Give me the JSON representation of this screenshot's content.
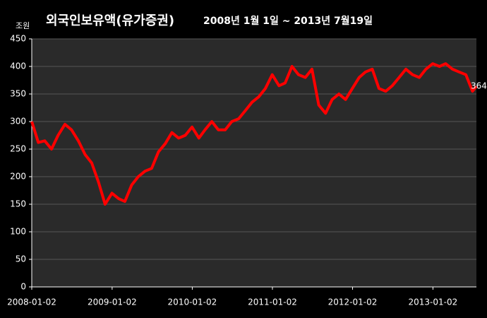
{
  "chart_data": {
    "type": "line",
    "title": "외국인보유액(유가증권)",
    "subtitle": "2008년 1월 1일 ~ 2013년 7월19일",
    "y_label": "조원",
    "x": [
      "2008-01-02",
      "2008-02-01",
      "2008-03-01",
      "2008-04-01",
      "2008-05-01",
      "2008-06-01",
      "2008-07-01",
      "2008-08-01",
      "2008-09-01",
      "2008-10-01",
      "2008-11-01",
      "2008-12-01",
      "2009-01-01",
      "2009-02-01",
      "2009-03-01",
      "2009-04-01",
      "2009-05-01",
      "2009-06-01",
      "2009-07-01",
      "2009-08-01",
      "2009-09-01",
      "2009-10-01",
      "2009-11-01",
      "2009-12-01",
      "2010-01-01",
      "2010-02-01",
      "2010-03-01",
      "2010-04-01",
      "2010-05-01",
      "2010-06-01",
      "2010-07-01",
      "2010-08-01",
      "2010-09-01",
      "2010-10-01",
      "2010-11-01",
      "2010-12-01",
      "2011-01-01",
      "2011-02-01",
      "2011-03-01",
      "2011-04-01",
      "2011-05-01",
      "2011-06-01",
      "2011-07-01",
      "2011-08-01",
      "2011-09-01",
      "2011-10-01",
      "2011-11-01",
      "2011-12-01",
      "2012-01-01",
      "2012-02-01",
      "2012-03-01",
      "2012-04-01",
      "2012-05-01",
      "2012-06-01",
      "2012-07-01",
      "2012-08-01",
      "2012-09-01",
      "2012-10-01",
      "2012-11-01",
      "2012-12-01",
      "2013-01-01",
      "2013-02-01",
      "2013-03-01",
      "2013-04-01",
      "2013-05-01",
      "2013-06-01",
      "2013-07-01",
      "2013-07-19"
    ],
    "series": [
      {
        "name": "외국인보유액",
        "color": "#ff0000",
        "values": [
          300,
          262,
          265,
          250,
          275,
          295,
          285,
          265,
          240,
          225,
          190,
          150,
          170,
          160,
          155,
          185,
          200,
          210,
          215,
          245,
          260,
          280,
          270,
          275,
          290,
          270,
          285,
          300,
          285,
          285,
          300,
          305,
          320,
          335,
          345,
          360,
          385,
          365,
          370,
          400,
          385,
          380,
          395,
          330,
          315,
          340,
          350,
          340,
          360,
          380,
          390,
          395,
          360,
          355,
          365,
          380,
          395,
          385,
          380,
          395,
          405,
          400,
          405,
          395,
          390,
          385,
          355,
          364
        ]
      }
    ],
    "xlim": [
      "2008-01-02",
      "2013-07-19"
    ],
    "xticks": [
      "2008-01-02",
      "2009-01-02",
      "2010-01-02",
      "2011-01-02",
      "2012-01-02",
      "2013-01-02"
    ],
    "ylim": [
      0,
      450
    ],
    "yticks": [
      0,
      50,
      100,
      150,
      200,
      250,
      300,
      350,
      400,
      450
    ],
    "grid": true
  }
}
